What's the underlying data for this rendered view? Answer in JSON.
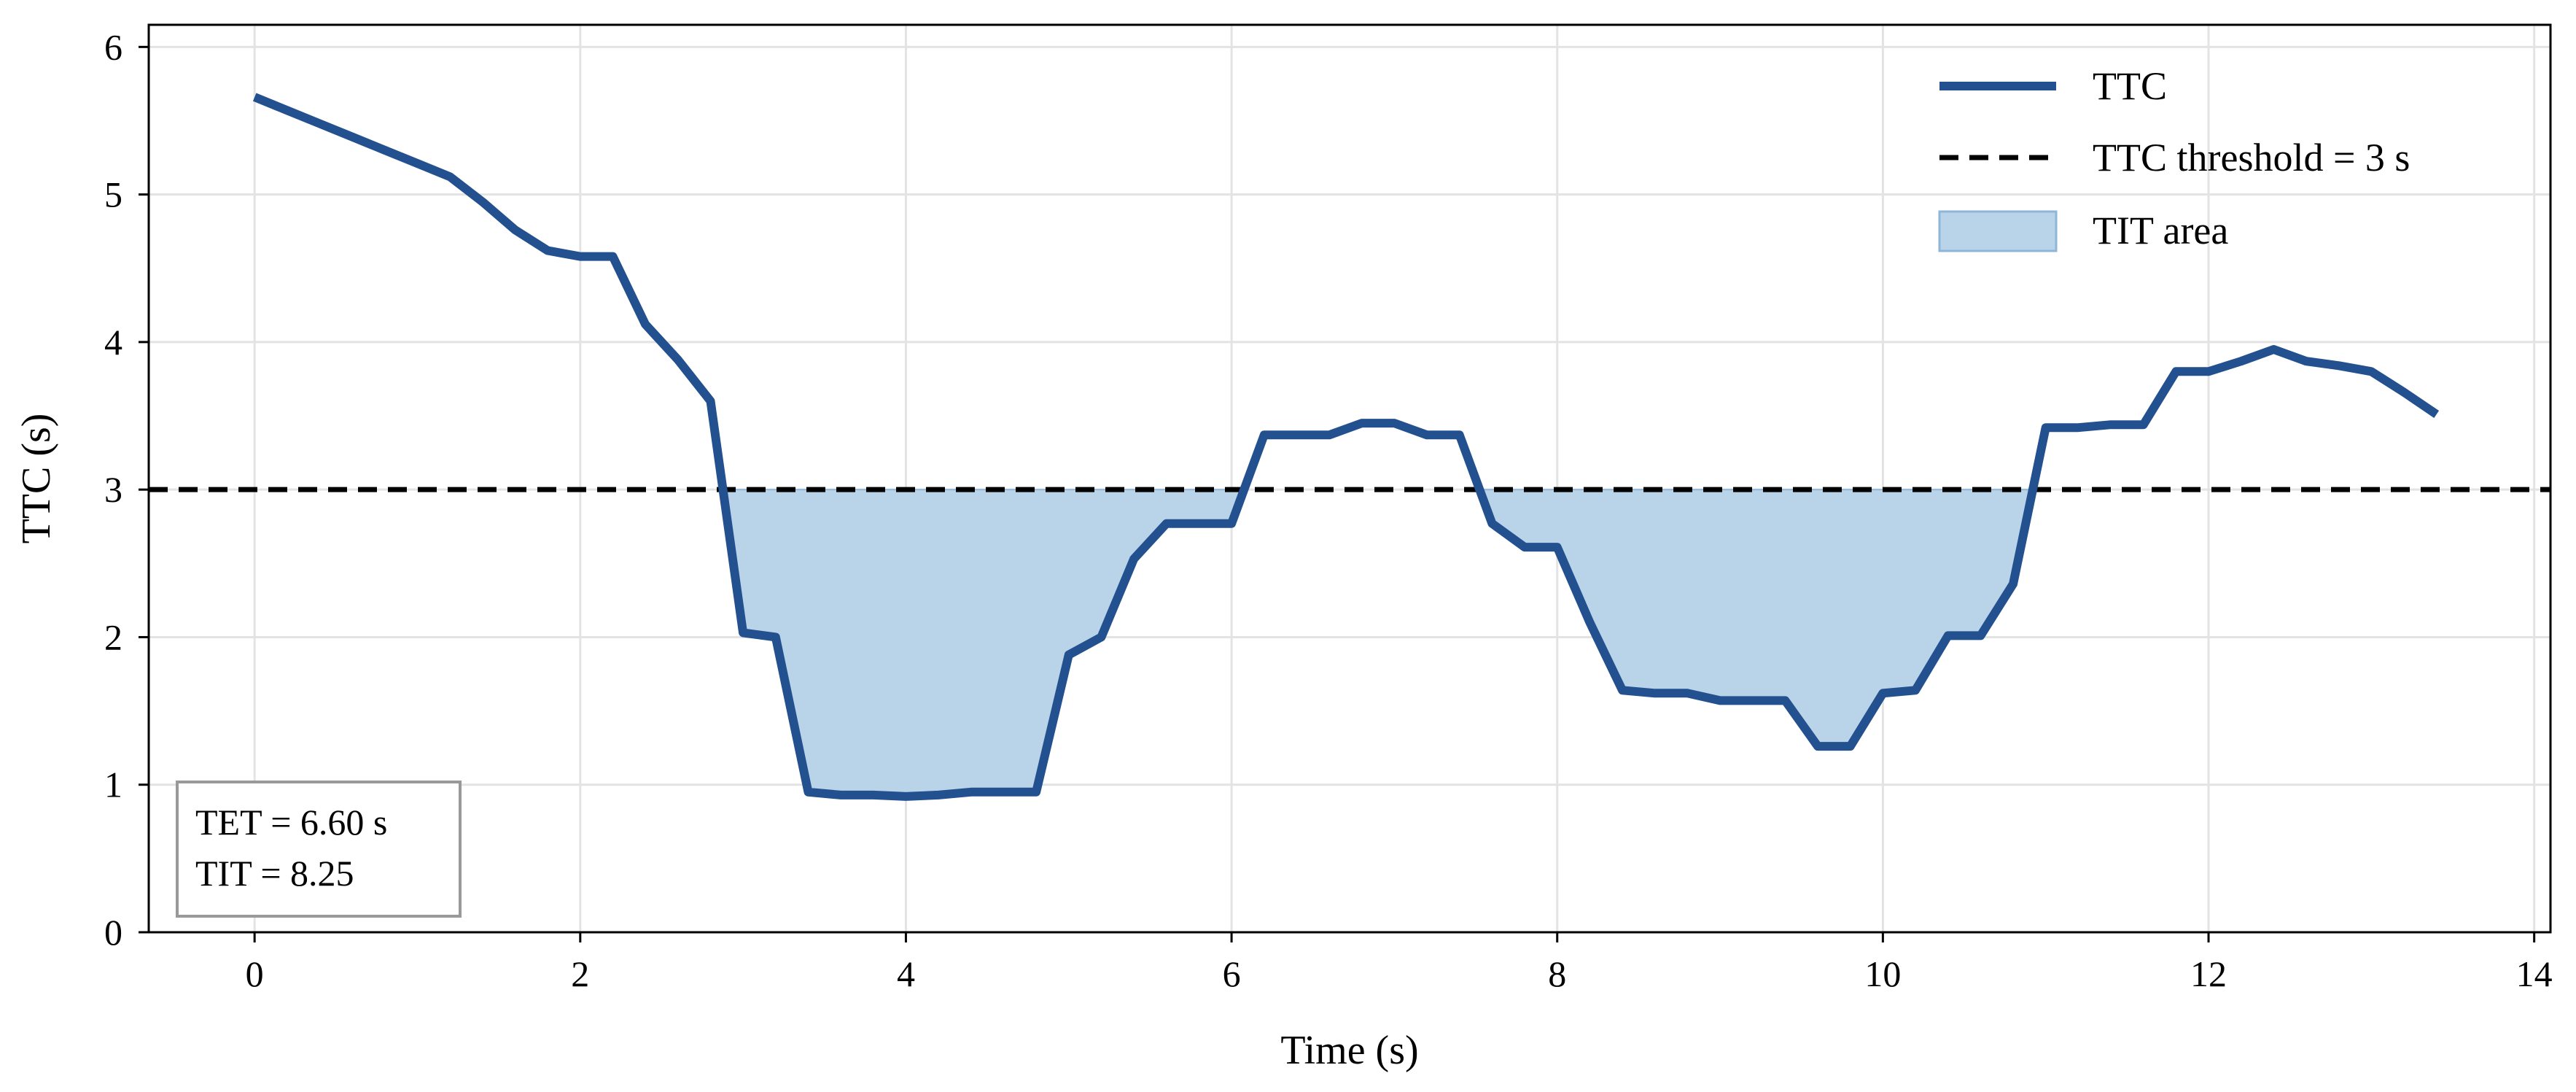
{
  "chart_data": {
    "type": "line",
    "title": "",
    "xlabel": "Time (s)",
    "ylabel": "TTC (s)",
    "xlim": [
      -0.65,
      14.1
    ],
    "ylim": [
      0,
      6.15
    ],
    "xticks": [
      0,
      2,
      4,
      6,
      8,
      10,
      12,
      14
    ],
    "yticks": [
      0,
      1,
      2,
      3,
      4,
      5,
      6
    ],
    "grid": true,
    "legend_position": "top-right",
    "colors": {
      "ttc_line": "#23508f",
      "threshold_line": "#000000",
      "tit_fill": "#b9d4e8",
      "tit_fill_edge": "#8fb6d9",
      "annotation_border": "#999999"
    },
    "series": [
      {
        "name": "TTC",
        "style": "solid",
        "x": [
          0,
          0.2,
          0.4,
          0.6,
          0.8,
          1.0,
          1.2,
          1.4,
          1.6,
          1.8,
          2.0,
          2.2,
          2.4,
          2.6,
          2.8,
          3.0,
          3.2,
          3.4,
          3.6,
          3.8,
          4.0,
          4.2,
          4.4,
          4.6,
          4.8,
          5.0,
          5.2,
          5.4,
          5.6,
          5.8,
          6.0,
          6.2,
          6.4,
          6.6,
          6.8,
          7.0,
          7.2,
          7.4,
          7.6,
          7.8,
          8.0,
          8.2,
          8.4,
          8.6,
          8.8,
          9.0,
          9.2,
          9.4,
          9.6,
          9.8,
          10.0,
          10.2,
          10.4,
          10.6,
          10.8,
          11.0,
          11.2,
          11.4,
          11.6,
          11.8,
          12.0,
          12.2,
          12.4,
          12.6,
          12.8,
          13.0,
          13.2,
          13.4
        ],
        "y": [
          5.66,
          5.57,
          5.48,
          5.39,
          5.3,
          5.21,
          5.12,
          4.95,
          4.76,
          4.62,
          4.58,
          4.58,
          4.12,
          3.88,
          3.6,
          2.03,
          2.0,
          0.95,
          0.93,
          0.93,
          0.92,
          0.93,
          0.95,
          0.95,
          0.95,
          1.88,
          2.0,
          2.53,
          2.77,
          2.77,
          2.77,
          3.37,
          3.37,
          3.37,
          3.45,
          3.45,
          3.37,
          3.37,
          2.77,
          2.61,
          2.61,
          2.1,
          1.64,
          1.62,
          1.62,
          1.57,
          1.57,
          1.57,
          1.26,
          1.26,
          1.62,
          1.64,
          2.01,
          2.01,
          2.36,
          3.42,
          3.42,
          3.44,
          3.44,
          3.8,
          3.8,
          3.87,
          3.95,
          3.87,
          3.84,
          3.8,
          3.66,
          3.51
        ]
      },
      {
        "name": "TTC threshold = 3 s",
        "style": "dashed",
        "y": 3
      },
      {
        "name": "TIT area",
        "style": "fill",
        "fill_between": {
          "lower": "TTC",
          "upper": 3,
          "where": "TTC < 3"
        }
      }
    ],
    "annotation": {
      "line1": "TET = 6.60 s",
      "line2": "TIT = 8.25",
      "position": "bottom-left"
    }
  }
}
